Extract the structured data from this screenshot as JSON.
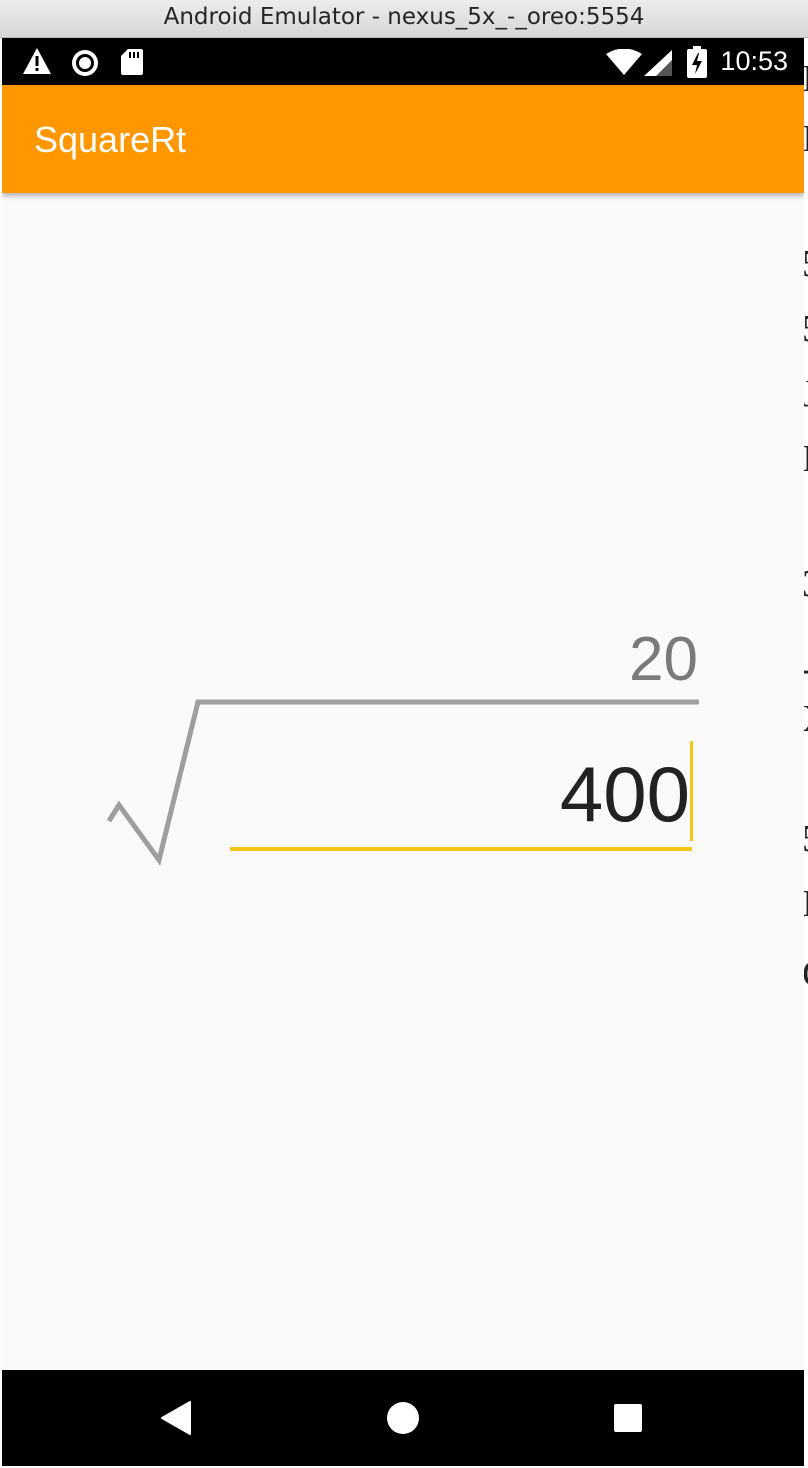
{
  "window": {
    "title": "Android Emulator - nexus_5x_-_oreo:5554"
  },
  "status_bar": {
    "time": "10:53",
    "left_icons": [
      "warning-icon",
      "record-icon",
      "sd-card-icon"
    ],
    "right_icons": [
      "wifi-icon",
      "cell-signal-icon",
      "battery-charging-icon"
    ]
  },
  "app_bar": {
    "title": "SquareRt",
    "color": "#ff9800"
  },
  "calculator": {
    "result": "20",
    "input_value": "400",
    "accent_color": "#f5c518",
    "radical_color": "#9e9e9e"
  },
  "nav_bar": {
    "buttons": [
      "back-icon",
      "home-icon",
      "recents-icon"
    ]
  }
}
